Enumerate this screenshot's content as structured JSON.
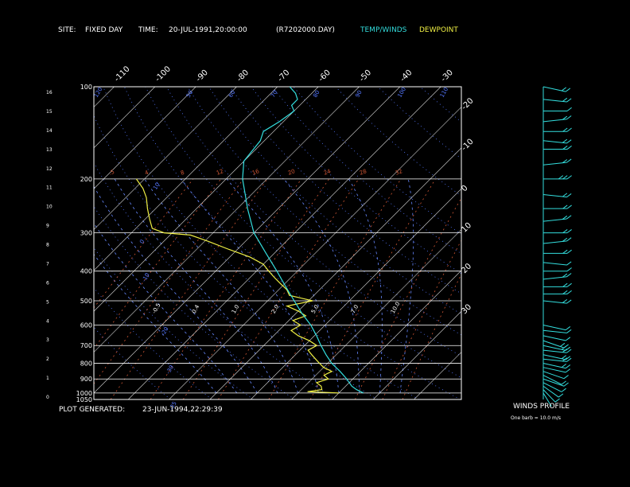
{
  "header": {
    "site_label": "SITE:",
    "site_value": "FIXED DAY",
    "time_label": "TIME:",
    "time_value": "20-JUL-1991,20:00:00",
    "file": "(R7202000.DAY)",
    "legend_temp": "TEMP/WINDS",
    "legend_dew": "DEWPOINT"
  },
  "footer": {
    "generated_label": "PLOT GENERATED:",
    "generated_value": "23-JUN-1994,22:29:39"
  },
  "winds_panel": {
    "title": "WINDS PROFILE",
    "note": "One barb = 10.0 m/s"
  },
  "colors": {
    "background": "#000000",
    "text": "#ffffff",
    "temp": "#33dddd",
    "dewpoint": "#eeee44",
    "isotherm": "#dddddd",
    "dry_adiabat": "#5577ff",
    "moist_adiabat": "#6688ff",
    "mixing_ratio": "#cc5533",
    "isobar": "#ffffff"
  },
  "chart_data": {
    "type": "line",
    "pressure_levels": [
      {
        "p": 1050,
        "label": "1050"
      },
      {
        "p": 1000,
        "label": "1000"
      },
      {
        "p": 900,
        "label": "900"
      },
      {
        "p": 800,
        "label": "800"
      },
      {
        "p": 700,
        "label": "700"
      },
      {
        "p": 600,
        "label": "600"
      },
      {
        "p": 500,
        "label": "500"
      },
      {
        "p": 400,
        "label": "400"
      },
      {
        "p": 300,
        "label": "300"
      },
      {
        "p": 200,
        "label": "200"
      },
      {
        "p": 100,
        "label": "100"
      }
    ],
    "height_ticks_km": [
      "0",
      "1",
      "2",
      "3",
      "4",
      "5",
      "6",
      "7",
      "8",
      "9",
      "10",
      "11",
      "12",
      "13",
      "14",
      "15",
      "16"
    ],
    "isotherm_labels": [
      {
        "t": -110,
        "label": "-110"
      },
      {
        "t": -100,
        "label": "-100"
      },
      {
        "t": -90,
        "label": "-90"
      },
      {
        "t": -80,
        "label": "-80"
      },
      {
        "t": -70,
        "label": "-70"
      },
      {
        "t": -60,
        "label": "-60"
      },
      {
        "t": -50,
        "label": "-50"
      },
      {
        "t": -40,
        "label": "-40"
      },
      {
        "t": -30,
        "label": "-30"
      },
      {
        "t": -20,
        "label": "-20"
      },
      {
        "t": -10,
        "label": "-10"
      },
      {
        "t": 0,
        "label": "0"
      },
      {
        "t": 10,
        "label": "10"
      },
      {
        "t": 20,
        "label": "20"
      },
      {
        "t": 30,
        "label": "30"
      }
    ],
    "isotherm_values": [
      -150,
      -140,
      -130,
      -120,
      -110,
      -100,
      -90,
      -80,
      -70,
      -60,
      -50,
      -40,
      -30,
      -20,
      -10,
      0,
      10,
      20,
      30,
      40
    ],
    "dry_adiabat_theta_k": [
      250,
      260,
      270,
      280,
      290,
      300,
      310,
      320,
      330,
      340,
      350,
      360,
      370,
      380,
      390,
      400,
      420,
      440,
      460,
      480,
      500
    ],
    "dry_adiabat_labels": [
      {
        "p": 100,
        "theta": 350,
        "label": "50"
      },
      {
        "p": 100,
        "theta": 370,
        "label": "60"
      },
      {
        "p": 100,
        "theta": 390,
        "label": "70"
      },
      {
        "p": 100,
        "theta": 410,
        "label": "80"
      },
      {
        "p": 100,
        "theta": 430,
        "label": "90"
      },
      {
        "p": 100,
        "theta": 450,
        "label": "100"
      },
      {
        "p": 100,
        "theta": 470,
        "label": "110"
      },
      {
        "p": 100,
        "theta": 490,
        "label": "120"
      },
      {
        "p": 200,
        "theta": 310,
        "label": "10"
      },
      {
        "p": 300,
        "theta": 290,
        "label": "0"
      },
      {
        "p": 400,
        "theta": 280,
        "label": "-10"
      },
      {
        "p": 600,
        "theta": 270,
        "label": "-20"
      },
      {
        "p": 800,
        "theta": 260,
        "label": "-30"
      },
      {
        "p": 1050,
        "theta": 250,
        "label": "-35"
      }
    ],
    "moist_adiabat_thetaw_c": [
      -10,
      -5,
      0,
      5,
      10,
      15,
      20,
      25,
      30,
      35
    ],
    "moist_adiabat_labels": [
      {
        "p": 600,
        "tw": -10,
        "label": "-0.5"
      },
      {
        "p": 600,
        "tw": -5,
        "label": "0.4"
      },
      {
        "p": 600,
        "tw": 0,
        "label": "1.0"
      },
      {
        "p": 600,
        "tw": 5,
        "label": "2.0"
      },
      {
        "p": 600,
        "tw": 10,
        "label": "5.0"
      },
      {
        "p": 600,
        "tw": 15,
        "label": "7.0"
      },
      {
        "p": 600,
        "tw": 20,
        "label": "10.0"
      }
    ],
    "mixing_ratio_gkg": [
      0.02,
      0.05,
      0.1,
      0.2,
      0.5,
      1,
      2,
      5,
      10,
      20,
      30,
      40
    ],
    "mixing_ratio_labels": [
      {
        "w": 0.02,
        "label": ".5"
      },
      {
        "w": 0.05,
        "label": "4"
      },
      {
        "w": 0.1,
        "label": "8"
      },
      {
        "w": 0.2,
        "label": "12"
      },
      {
        "w": 0.5,
        "label": "16"
      },
      {
        "w": 1,
        "label": "20"
      },
      {
        "w": 2,
        "label": "24"
      },
      {
        "w": 10,
        "label": "28"
      },
      {
        "w": 30,
        "label": "32"
      }
    ],
    "temperature_profile": [
      [
        1000,
        26
      ],
      [
        975,
        23.5
      ],
      [
        950,
        21.5
      ],
      [
        925,
        20
      ],
      [
        900,
        18.5
      ],
      [
        850,
        15
      ],
      [
        800,
        11
      ],
      [
        750,
        7.5
      ],
      [
        700,
        4
      ],
      [
        650,
        0.5
      ],
      [
        600,
        -3.5
      ],
      [
        550,
        -8.5
      ],
      [
        500,
        -13.5
      ],
      [
        450,
        -19
      ],
      [
        400,
        -25
      ],
      [
        350,
        -32
      ],
      [
        300,
        -40
      ],
      [
        250,
        -47.5
      ],
      [
        225,
        -51.5
      ],
      [
        200,
        -56
      ],
      [
        175,
        -60
      ],
      [
        150,
        -61
      ],
      [
        140,
        -62.5
      ],
      [
        130,
        -61
      ],
      [
        120,
        -60
      ],
      [
        115,
        -62
      ],
      [
        110,
        -62
      ],
      [
        105,
        -64
      ],
      [
        100,
        -67
      ]
    ],
    "dewpoint_profile": [
      [
        1000,
        20
      ],
      [
        990,
        12
      ],
      [
        975,
        15
      ],
      [
        950,
        14
      ],
      [
        925,
        12
      ],
      [
        900,
        14
      ],
      [
        875,
        12
      ],
      [
        850,
        13
      ],
      [
        825,
        10
      ],
      [
        800,
        8
      ],
      [
        775,
        6
      ],
      [
        750,
        4
      ],
      [
        725,
        2
      ],
      [
        700,
        3
      ],
      [
        675,
        0
      ],
      [
        650,
        -4
      ],
      [
        625,
        -7
      ],
      [
        600,
        -6
      ],
      [
        580,
        -9
      ],
      [
        560,
        -7
      ],
      [
        540,
        -10
      ],
      [
        520,
        -14
      ],
      [
        500,
        -9
      ],
      [
        480,
        -16
      ],
      [
        460,
        -18
      ],
      [
        440,
        -21
      ],
      [
        420,
        -24
      ],
      [
        400,
        -27
      ],
      [
        380,
        -30
      ],
      [
        360,
        -35
      ],
      [
        340,
        -42
      ],
      [
        320,
        -49
      ],
      [
        305,
        -55
      ],
      [
        300,
        -62
      ],
      [
        290,
        -66
      ],
      [
        270,
        -69
      ],
      [
        250,
        -72
      ],
      [
        230,
        -75
      ],
      [
        215,
        -78
      ],
      [
        200,
        -82
      ]
    ],
    "winds_profile_ms": [
      [
        1000,
        4,
        200
      ],
      [
        975,
        6,
        210
      ],
      [
        950,
        8,
        220
      ],
      [
        925,
        9,
        230
      ],
      [
        900,
        10,
        240
      ],
      [
        875,
        9,
        230
      ],
      [
        850,
        12,
        240
      ],
      [
        825,
        10,
        250
      ],
      [
        800,
        15,
        250
      ],
      [
        775,
        18,
        260
      ],
      [
        750,
        20,
        250
      ],
      [
        725,
        22,
        260
      ],
      [
        700,
        20,
        250
      ],
      [
        675,
        15,
        240
      ],
      [
        650,
        12,
        250
      ],
      [
        625,
        10,
        260
      ],
      [
        600,
        14,
        250
      ],
      [
        500,
        15,
        260
      ],
      [
        475,
        16,
        270
      ],
      [
        450,
        18,
        270
      ],
      [
        425,
        16,
        280
      ],
      [
        400,
        14,
        270
      ],
      [
        375,
        12,
        260
      ],
      [
        350,
        15,
        270
      ],
      [
        325,
        18,
        280
      ],
      [
        300,
        20,
        270
      ],
      [
        275,
        22,
        280
      ],
      [
        250,
        24,
        270
      ],
      [
        225,
        22,
        260
      ],
      [
        200,
        26,
        270
      ],
      [
        180,
        24,
        280
      ],
      [
        160,
        22,
        270
      ],
      [
        150,
        20,
        260
      ],
      [
        140,
        18,
        270
      ],
      [
        130,
        16,
        280
      ],
      [
        120,
        14,
        270
      ],
      [
        110,
        20,
        260
      ],
      [
        100,
        22,
        250
      ]
    ],
    "xlim_c_at_1000hpa": [
      -40,
      50
    ],
    "ylim_hpa": [
      1050,
      100
    ]
  }
}
